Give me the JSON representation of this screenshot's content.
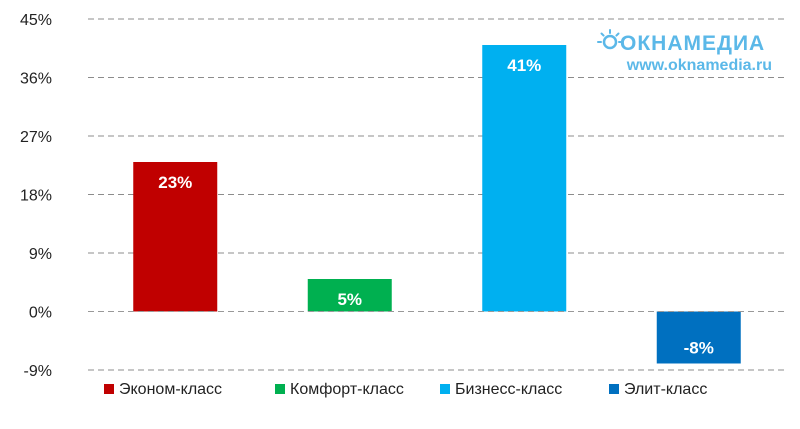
{
  "chart_data": {
    "type": "bar",
    "categories": [
      "Эконом-класс",
      "Комфорт-класс",
      "Бизнесс-класс",
      "Элит-класс"
    ],
    "values": [
      23,
      5,
      41,
      -8
    ],
    "data_labels": [
      "23%",
      "5%",
      "41%",
      "-8%"
    ],
    "colors": [
      "#c00000",
      "#00b050",
      "#00b0f0",
      "#0070c0"
    ],
    "ylim": [
      -9,
      45
    ],
    "yticks": [
      45,
      36,
      27,
      18,
      9,
      0,
      -9
    ],
    "ytick_labels": [
      "45%",
      "36%",
      "27%",
      "18%",
      "9%",
      "0%",
      "-9%"
    ],
    "grid": true,
    "legend_position": "bottom",
    "title": "",
    "xlabel": "",
    "ylabel": ""
  },
  "watermark": {
    "logo": "ОКНАМЕДИА",
    "url": "www.oknamedia.ru"
  }
}
